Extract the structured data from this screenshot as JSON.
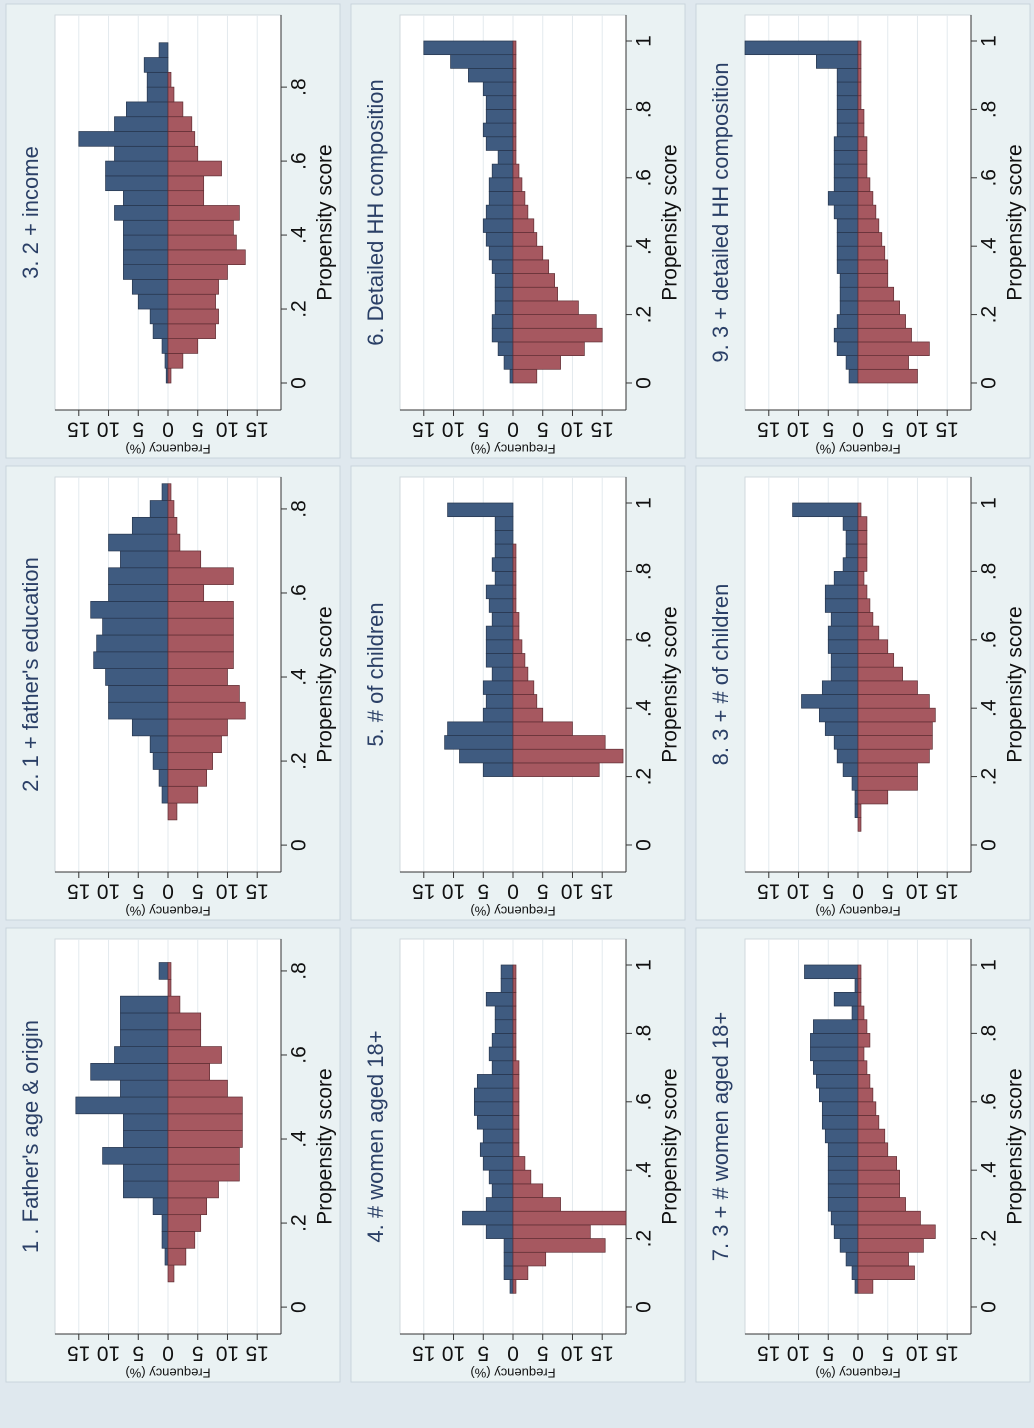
{
  "chart_data": [
    {
      "type": "histogram",
      "title": "1 . Father's age & origin",
      "xlabel": "Propensity score",
      "ylabel": "Frequency (%)",
      "bins": [
        0.06,
        0.1,
        0.14,
        0.18,
        0.22,
        0.26,
        0.3,
        0.34,
        0.38,
        0.42,
        0.46,
        0.5,
        0.54,
        0.58,
        0.62,
        0.66,
        0.7,
        0.74,
        0.78,
        0.82
      ],
      "series": [
        {
          "color": "#3f5b80",
          "values": [
            0,
            0.5,
            1,
            1,
            2.5,
            7.5,
            7.5,
            11,
            7.5,
            7.5,
            15.5,
            8,
            13,
            9,
            8,
            8,
            8,
            0,
            1.5
          ]
        },
        {
          "color": "#a65860",
          "values": [
            1,
            3,
            4.5,
            5.5,
            6.5,
            8.5,
            12,
            12,
            12.5,
            12.5,
            12.5,
            10,
            7,
            9,
            5.5,
            5.5,
            2,
            0.5,
            0.5
          ]
        }
      ],
      "xlim": [
        -0.064,
        0.876
      ],
      "xticks": [
        0,
        {
          "value": 0.2,
          "label": ".2"
        },
        {
          "value": 0.4,
          "label": ".4"
        },
        {
          "value": 0.6,
          "label": ".6"
        },
        {
          "value": 0.8,
          "label": ".8"
        }
      ],
      "ylim": [
        -19,
        19
      ],
      "yticks": [
        {
          "value": -15,
          "label": "15"
        },
        {
          "value": -10,
          "label": "10"
        },
        {
          "value": -5,
          "label": "5"
        },
        0,
        5,
        10,
        15
      ],
      "grid": true
    },
    {
      "type": "histogram",
      "title": "2. 1 + father's education",
      "xlabel": "Propensity score",
      "ylabel": "Frequency (%)",
      "bins": [
        0.06,
        0.1,
        0.14,
        0.18,
        0.22,
        0.26,
        0.3,
        0.34,
        0.38,
        0.42,
        0.46,
        0.5,
        0.54,
        0.58,
        0.62,
        0.66,
        0.7,
        0.74,
        0.78,
        0.82,
        0.86
      ],
      "series": [
        {
          "color": "#3f5b80",
          "values": [
            0,
            1,
            1.5,
            2.5,
            3,
            6,
            10,
            10,
            10.5,
            12.5,
            12,
            11,
            13,
            10,
            10,
            8,
            10,
            6,
            3,
            1
          ]
        },
        {
          "color": "#a65860",
          "values": [
            1.5,
            5,
            6.5,
            7.5,
            9,
            10,
            13,
            12,
            10,
            11,
            11,
            11,
            11,
            6,
            11,
            5.5,
            2,
            1.5,
            1,
            0.5
          ]
        }
      ],
      "xlim": [
        -0.064,
        0.876
      ],
      "xticks": [
        0,
        {
          "value": 0.2,
          "label": ".2"
        },
        {
          "value": 0.4,
          "label": ".4"
        },
        {
          "value": 0.6,
          "label": ".6"
        },
        {
          "value": 0.8,
          "label": ".8"
        }
      ],
      "ylim": [
        -19,
        19
      ],
      "yticks": [
        {
          "value": -15,
          "label": "15"
        },
        {
          "value": -10,
          "label": "10"
        },
        {
          "value": -5,
          "label": "5"
        },
        0,
        5,
        10,
        15
      ],
      "grid": true
    },
    {
      "type": "histogram",
      "title": "3. 2 + income",
      "xlabel": "Propensity score",
      "ylabel": "Frequency (%)",
      "bins": [
        0,
        0.04,
        0.08,
        0.12,
        0.16,
        0.2,
        0.24,
        0.28,
        0.32,
        0.36,
        0.4,
        0.44,
        0.48,
        0.52,
        0.56,
        0.6,
        0.64,
        0.68,
        0.72,
        0.76,
        0.8,
        0.84,
        0.88,
        0.92
      ],
      "series": [
        {
          "color": "#3f5b80",
          "values": [
            0.3,
            0.5,
            1,
            2.5,
            3,
            5,
            6,
            7.5,
            7.5,
            7.5,
            7.5,
            9,
            7.5,
            10.5,
            10.5,
            9,
            15,
            9,
            7,
            3.5,
            3.5,
            4,
            1.5
          ]
        },
        {
          "color": "#a65860",
          "values": [
            0.5,
            2.5,
            5,
            8,
            8.5,
            8,
            8.5,
            10,
            13,
            11.5,
            11,
            12,
            6,
            6,
            9,
            5,
            4.5,
            4,
            2.5,
            1,
            0.5,
            0,
            0
          ]
        }
      ],
      "xlim": [
        -0.073,
        0.995
      ],
      "xticks": [
        0,
        {
          "value": 0.2,
          "label": ".2"
        },
        {
          "value": 0.4,
          "label": ".4"
        },
        {
          "value": 0.6,
          "label": ".6"
        },
        {
          "value": 0.8,
          "label": ".8"
        }
      ],
      "ylim": [
        -19,
        19
      ],
      "yticks": [
        {
          "value": -15,
          "label": "15"
        },
        {
          "value": -10,
          "label": "10"
        },
        {
          "value": -5,
          "label": "5"
        },
        0,
        5,
        10,
        15
      ],
      "grid": true
    },
    {
      "type": "histogram",
      "title": "4. # women aged 18+",
      "xlabel": "Propensity score",
      "ylabel": "Frequency (%)",
      "bins": [
        0.04,
        0.08,
        0.12,
        0.16,
        0.2,
        0.24,
        0.28,
        0.32,
        0.36,
        0.4,
        0.44,
        0.48,
        0.52,
        0.56,
        0.6,
        0.64,
        0.68,
        0.72,
        0.76,
        0.8,
        0.84,
        0.88,
        0.92,
        0.96,
        1
      ],
      "series": [
        {
          "color": "#3f5b80",
          "values": [
            0.5,
            1.5,
            1.5,
            1.5,
            4.5,
            8.5,
            4.5,
            3.5,
            4,
            5,
            5.5,
            5,
            6,
            6.5,
            6.5,
            6,
            3.5,
            4,
            3.5,
            3,
            3,
            4.5,
            2,
            2
          ]
        },
        {
          "color": "#a65860",
          "values": [
            0.5,
            2.5,
            5.5,
            15.5,
            13,
            19,
            8,
            5,
            3,
            2,
            1,
            1,
            1,
            1,
            1,
            1,
            1,
            0.5,
            0.5,
            0.5,
            0.5,
            0.5,
            0.5,
            0.5
          ]
        }
      ],
      "xlim": [
        -0.079,
        1.076
      ],
      "xticks": [
        0,
        {
          "value": 0.2,
          "label": ".2"
        },
        {
          "value": 0.4,
          "label": ".4"
        },
        {
          "value": 0.6,
          "label": ".6"
        },
        {
          "value": 0.8,
          "label": ".8"
        },
        1
      ],
      "ylim": [
        -19,
        19
      ],
      "yticks": [
        {
          "value": -15,
          "label": "15"
        },
        {
          "value": -10,
          "label": "10"
        },
        {
          "value": -5,
          "label": "5"
        },
        0,
        5,
        10,
        15
      ],
      "grid": true
    },
    {
      "type": "histogram",
      "title": "5. # of children",
      "xlabel": "Propensity score",
      "ylabel": "Frequency (%)",
      "bins": [
        0.2,
        0.24,
        0.28,
        0.32,
        0.36,
        0.4,
        0.44,
        0.48,
        0.52,
        0.56,
        0.6,
        0.64,
        0.68,
        0.72,
        0.76,
        0.8,
        0.84,
        0.88,
        0.92,
        0.96,
        1
      ],
      "series": [
        {
          "color": "#3f5b80",
          "values": [
            5,
            9,
            11.5,
            11,
            5,
            4.5,
            5,
            3.5,
            4.5,
            4.5,
            4.5,
            3.5,
            4,
            4.5,
            3,
            3.5,
            3,
            3,
            3,
            11
          ]
        },
        {
          "color": "#a65860",
          "values": [
            14.5,
            18.5,
            15.5,
            10,
            5,
            4,
            3.5,
            2.5,
            2,
            1.5,
            1,
            1,
            0.5,
            0.5,
            0.5,
            0.5,
            0.5,
            0,
            0,
            0
          ]
        }
      ],
      "xlim": [
        -0.079,
        1.076
      ],
      "xticks": [
        0,
        {
          "value": 0.2,
          "label": ".2"
        },
        {
          "value": 0.4,
          "label": ".4"
        },
        {
          "value": 0.6,
          "label": ".6"
        },
        {
          "value": 0.8,
          "label": ".8"
        },
        1
      ],
      "ylim": [
        -19,
        19
      ],
      "yticks": [
        {
          "value": -15,
          "label": "15"
        },
        {
          "value": -10,
          "label": "10"
        },
        {
          "value": -5,
          "label": "5"
        },
        0,
        5,
        10,
        15
      ],
      "grid": true
    },
    {
      "type": "histogram",
      "title": "6. Detailed HH composition",
      "xlabel": "Propensity score",
      "ylabel": "Frequency (%)",
      "bins": [
        0,
        0.04,
        0.08,
        0.12,
        0.16,
        0.2,
        0.24,
        0.28,
        0.32,
        0.36,
        0.4,
        0.44,
        0.48,
        0.52,
        0.56,
        0.6,
        0.64,
        0.68,
        0.72,
        0.76,
        0.8,
        0.84,
        0.88,
        0.92,
        0.96,
        1
      ],
      "series": [
        {
          "color": "#3f5b80",
          "values": [
            0.5,
            1.5,
            2.5,
            3.5,
            3.5,
            3,
            3,
            3,
            3.5,
            4,
            4.5,
            5,
            4.5,
            4,
            4,
            3.5,
            2.5,
            4.5,
            5,
            4.5,
            4.5,
            5,
            7.5,
            10.5,
            15
          ]
        },
        {
          "color": "#a65860",
          "values": [
            4,
            8,
            12,
            15,
            14,
            11,
            7.5,
            7,
            6,
            5,
            4,
            3.5,
            2.5,
            2,
            1.5,
            1,
            0.5,
            0.5,
            0.5,
            0.5,
            0.5,
            0.5,
            0.5,
            0.5,
            0.5
          ]
        }
      ],
      "xlim": [
        -0.079,
        1.076
      ],
      "xticks": [
        0,
        {
          "value": 0.2,
          "label": ".2"
        },
        {
          "value": 0.4,
          "label": ".4"
        },
        {
          "value": 0.6,
          "label": ".6"
        },
        {
          "value": 0.8,
          "label": ".8"
        },
        1
      ],
      "ylim": [
        -19,
        19
      ],
      "yticks": [
        {
          "value": -15,
          "label": "15"
        },
        {
          "value": -10,
          "label": "10"
        },
        {
          "value": -5,
          "label": "5"
        },
        0,
        5,
        10,
        15
      ],
      "grid": true
    },
    {
      "type": "histogram",
      "title": "7. 3 + # women aged 18+",
      "xlabel": "Propensity score",
      "ylabel": "Frequency (%)",
      "bins": [
        0.04,
        0.08,
        0.12,
        0.16,
        0.2,
        0.24,
        0.28,
        0.32,
        0.36,
        0.4,
        0.44,
        0.48,
        0.52,
        0.56,
        0.6,
        0.64,
        0.68,
        0.72,
        0.76,
        0.8,
        0.84,
        0.88,
        0.92,
        0.96,
        1
      ],
      "series": [
        {
          "color": "#3f5b80",
          "values": [
            0.5,
            1,
            2,
            3,
            4,
            4.5,
            5,
            5,
            5,
            5,
            5,
            5.5,
            6,
            6,
            6.5,
            7,
            7.5,
            8,
            8,
            7.5,
            1,
            4,
            0.5,
            9
          ]
        },
        {
          "color": "#a65860",
          "values": [
            2.5,
            9.5,
            8.5,
            11,
            13,
            10.5,
            8,
            7,
            7,
            6.5,
            5,
            4.5,
            3.5,
            3,
            2.5,
            2,
            1.5,
            1,
            2,
            1.5,
            1,
            0.5,
            0.5,
            0.5
          ]
        }
      ],
      "xlim": [
        -0.079,
        1.076
      ],
      "xticks": [
        0,
        {
          "value": 0.2,
          "label": ".2"
        },
        {
          "value": 0.4,
          "label": ".4"
        },
        {
          "value": 0.6,
          "label": ".6"
        },
        {
          "value": 0.8,
          "label": ".8"
        },
        1
      ],
      "ylim": [
        -19,
        19
      ],
      "yticks": [
        {
          "value": -15,
          "label": "15"
        },
        {
          "value": -10,
          "label": "10"
        },
        {
          "value": -5,
          "label": "5"
        },
        0,
        5,
        10,
        15
      ],
      "grid": true
    },
    {
      "type": "histogram",
      "title": "8. 3 + # of children",
      "xlabel": "Propensity score",
      "ylabel": "Frequency (%)",
      "bins": [
        0.04,
        0.08,
        0.12,
        0.16,
        0.2,
        0.24,
        0.28,
        0.32,
        0.36,
        0.4,
        0.44,
        0.48,
        0.52,
        0.56,
        0.6,
        0.64,
        0.68,
        0.72,
        0.76,
        0.8,
        0.84,
        0.88,
        0.92,
        0.96,
        1
      ],
      "series": [
        {
          "color": "#3f5b80",
          "values": [
            0,
            0.5,
            0.5,
            1,
            2.5,
            3.5,
            4,
            5.5,
            6.5,
            9.5,
            6,
            4.5,
            4.5,
            5,
            5,
            4.5,
            5.5,
            5.5,
            4,
            2.5,
            2,
            2,
            2.5,
            11
          ]
        },
        {
          "color": "#a65860",
          "values": [
            0.5,
            0.5,
            5,
            10,
            10,
            12,
            12.5,
            12.5,
            13,
            12,
            10,
            7.5,
            6,
            5,
            3.5,
            2.5,
            2,
            1.5,
            1,
            1.5,
            1.5,
            1.5,
            1.5,
            0.5
          ]
        }
      ],
      "xlim": [
        -0.079,
        1.076
      ],
      "xticks": [
        0,
        {
          "value": 0.2,
          "label": ".2"
        },
        {
          "value": 0.4,
          "label": ".4"
        },
        {
          "value": 0.6,
          "label": ".6"
        },
        {
          "value": 0.8,
          "label": ".8"
        },
        1
      ],
      "ylim": [
        -19,
        19
      ],
      "yticks": [
        {
          "value": -15,
          "label": "15"
        },
        {
          "value": -10,
          "label": "10"
        },
        {
          "value": -5,
          "label": "5"
        },
        0,
        5,
        10,
        15
      ],
      "grid": true
    },
    {
      "type": "histogram",
      "title": "9. 3 + detailed HH composition",
      "xlabel": "Propensity score",
      "ylabel": "Frequency (%)",
      "bins": [
        0,
        0.04,
        0.08,
        0.12,
        0.16,
        0.2,
        0.24,
        0.28,
        0.32,
        0.36,
        0.4,
        0.44,
        0.48,
        0.52,
        0.56,
        0.6,
        0.64,
        0.68,
        0.72,
        0.76,
        0.8,
        0.84,
        0.88,
        0.92,
        0.96,
        1
      ],
      "series": [
        {
          "color": "#3f5b80",
          "values": [
            1.5,
            2,
            3.5,
            4,
            3.5,
            3,
            3,
            3,
            3.5,
            3.5,
            3.5,
            3.5,
            4,
            5,
            4,
            4,
            4,
            4,
            3.5,
            3.5,
            3.5,
            3.5,
            3.5,
            7,
            19
          ]
        },
        {
          "color": "#a65860",
          "values": [
            10,
            8.5,
            12,
            9,
            8,
            7,
            6,
            5,
            5,
            4.5,
            4,
            3.5,
            3,
            2.5,
            2,
            1.5,
            1.5,
            1.5,
            1,
            1,
            0.5,
            0.5,
            0.5,
            0.5,
            0.5
          ]
        }
      ],
      "xlim": [
        -0.079,
        1.076
      ],
      "xticks": [
        0,
        {
          "value": 0.2,
          "label": ".2"
        },
        {
          "value": 0.4,
          "label": ".4"
        },
        {
          "value": 0.6,
          "label": ".6"
        },
        {
          "value": 0.8,
          "label": ".8"
        },
        1
      ],
      "ylim": [
        -19,
        19
      ],
      "yticks": [
        {
          "value": -15,
          "label": "15"
        },
        {
          "value": -10,
          "label": "10"
        },
        {
          "value": -5,
          "label": "5"
        },
        0,
        5,
        10,
        15
      ],
      "grid": true
    }
  ]
}
